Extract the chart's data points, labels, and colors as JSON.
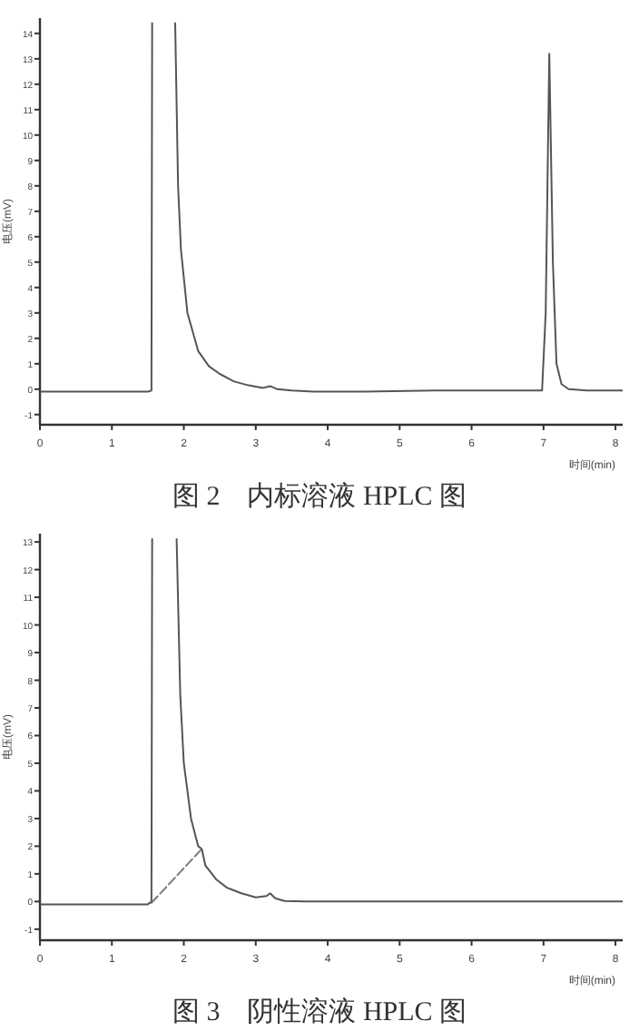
{
  "chart_data": [
    {
      "type": "line",
      "title": "图 2　内标溶液 HPLC 图",
      "xlabel": "时间(min)",
      "ylabel": "电压(mV)",
      "xlim": [
        0,
        8.1
      ],
      "ylim": [
        -1.4,
        14.6
      ],
      "xticks": [
        0,
        1,
        2,
        3,
        4,
        5,
        6,
        7,
        8
      ],
      "yticks": [
        -1,
        0,
        1,
        2,
        3,
        4,
        5,
        6,
        7,
        8,
        9,
        10,
        11,
        12,
        13,
        14
      ],
      "grid": false,
      "marker": "none",
      "line_style": "solid",
      "series": [
        {
          "color": "#555555",
          "x": [
            0,
            0.5,
            1.0,
            1.5,
            1.55,
            1.56
          ],
          "values": [
            -0.1,
            -0.1,
            -0.1,
            -0.1,
            -0.05,
            14.4
          ]
        },
        {
          "color": "#555555",
          "x": [
            1.88,
            1.92,
            1.96,
            2.05,
            2.2,
            2.35,
            2.5,
            2.7,
            2.9,
            3.1,
            3.2,
            3.3,
            3.5,
            3.8,
            4.5,
            5.5,
            6.5,
            6.98,
            7.03,
            7.08,
            7.13,
            7.18,
            7.25,
            7.35,
            7.6,
            8.1
          ],
          "values": [
            14.4,
            8.0,
            5.5,
            3.0,
            1.5,
            0.9,
            0.6,
            0.3,
            0.15,
            0.05,
            0.12,
            0.0,
            -0.05,
            -0.1,
            -0.1,
            -0.05,
            -0.05,
            -0.05,
            3.0,
            13.2,
            5.0,
            1.0,
            0.2,
            0.0,
            -0.05,
            -0.05
          ]
        }
      ]
    },
    {
      "type": "line",
      "title": "图 3　阴性溶液 HPLC 图",
      "xlabel": "时间(min)",
      "ylabel": "电压(mV)",
      "xlim": [
        0,
        8.1
      ],
      "ylim": [
        -1.4,
        13.3
      ],
      "xticks": [
        0,
        1,
        2,
        3,
        4,
        5,
        6,
        7,
        8
      ],
      "yticks": [
        -1,
        0,
        1,
        2,
        3,
        4,
        5,
        6,
        7,
        8,
        9,
        10,
        11,
        12,
        13
      ],
      "grid": false,
      "marker": "none",
      "line_style": "solid",
      "series": [
        {
          "color": "#555555",
          "x": [
            0,
            0.5,
            1.0,
            1.5,
            1.55,
            1.56
          ],
          "values": [
            -0.1,
            -0.1,
            -0.1,
            -0.1,
            0.0,
            13.1
          ]
        },
        {
          "color": "#555555",
          "x": [
            1.9,
            1.95,
            2.0,
            2.1,
            2.2,
            2.25,
            2.3,
            2.45,
            2.6,
            2.8,
            3.0,
            3.15,
            3.2,
            3.27,
            3.4,
            3.7,
            4.5,
            5.5,
            6.5,
            7.5,
            8.1
          ],
          "values": [
            13.1,
            7.5,
            5.0,
            3.0,
            2.0,
            1.9,
            1.3,
            0.8,
            0.5,
            0.3,
            0.15,
            0.2,
            0.3,
            0.12,
            0.02,
            0.0,
            0.0,
            0.0,
            0.0,
            0.0,
            0.0
          ]
        },
        {
          "color": "#777777",
          "line_style": "dashed",
          "x": [
            1.55,
            2.25
          ],
          "values": [
            -0.05,
            1.9
          ]
        }
      ]
    }
  ]
}
